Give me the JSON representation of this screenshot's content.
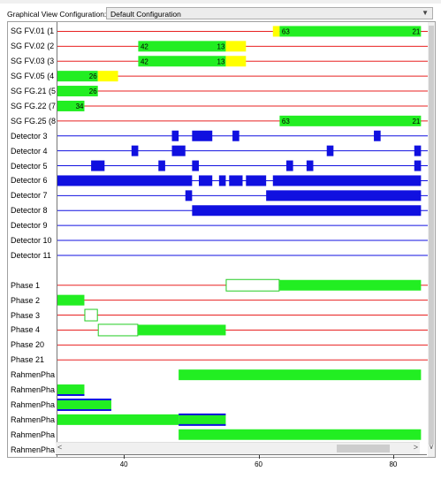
{
  "config": {
    "label": "Graphical View Configuration:",
    "value": "Default Configuration"
  },
  "timeline": {
    "x_min": 30,
    "x_max": 85,
    "ticks": [
      40,
      60,
      80
    ]
  },
  "colors": {
    "green": "#22ee22",
    "yellow": "#ffff00",
    "red": "#e82020",
    "blue": "#1010e0",
    "outline_green": "#22cc22"
  },
  "rows": [
    {
      "label": "SG FV.01 (1",
      "kind": "sg",
      "segments": [
        {
          "x0": 62,
          "x1": 63,
          "color": "yellow"
        },
        {
          "x0": 63,
          "x1": 84,
          "color": "green"
        }
      ],
      "texts": [
        {
          "x": 63.2,
          "text": "63"
        },
        {
          "x": 84,
          "text": "21",
          "align": "end"
        }
      ]
    },
    {
      "label": "SG FV.02 (2",
      "kind": "sg",
      "segments": [
        {
          "x0": 42,
          "x1": 55,
          "color": "green"
        },
        {
          "x0": 55,
          "x1": 58,
          "color": "yellow"
        }
      ],
      "texts": [
        {
          "x": 42.2,
          "text": "42"
        },
        {
          "x": 55,
          "text": "13",
          "align": "end"
        }
      ]
    },
    {
      "label": "SG FV.03 (3",
      "kind": "sg",
      "segments": [
        {
          "x0": 42,
          "x1": 55,
          "color": "green"
        },
        {
          "x0": 55,
          "x1": 58,
          "color": "yellow"
        }
      ],
      "texts": [
        {
          "x": 42.2,
          "text": "42"
        },
        {
          "x": 55,
          "text": "13",
          "align": "end"
        }
      ]
    },
    {
      "label": "SG FV.05 (4",
      "kind": "sg",
      "segments": [
        {
          "x0": 30,
          "x1": 36,
          "color": "green"
        },
        {
          "x0": 36,
          "x1": 39,
          "color": "yellow"
        }
      ],
      "texts": [
        {
          "x": 36,
          "text": "26",
          "align": "end"
        }
      ]
    },
    {
      "label": "SG FG.21 (5",
      "kind": "sg",
      "segments": [
        {
          "x0": 30,
          "x1": 36,
          "color": "green"
        }
      ],
      "texts": [
        {
          "x": 36,
          "text": "26",
          "align": "end"
        }
      ]
    },
    {
      "label": "SG FG.22 (7",
      "kind": "sg",
      "segments": [
        {
          "x0": 30,
          "x1": 34,
          "color": "green"
        }
      ],
      "texts": [
        {
          "x": 34,
          "text": "34",
          "align": "end"
        }
      ]
    },
    {
      "label": "SG FG.25 (8",
      "kind": "sg",
      "segments": [
        {
          "x0": 63,
          "x1": 84,
          "color": "green"
        }
      ],
      "texts": [
        {
          "x": 63.2,
          "text": "63"
        },
        {
          "x": 84,
          "text": "21",
          "align": "end"
        }
      ]
    },
    {
      "label": "Detector 3",
      "kind": "det",
      "segments": [
        {
          "x0": 47,
          "x1": 48
        },
        {
          "x0": 50,
          "x1": 53
        },
        {
          "x0": 56,
          "x1": 57
        },
        {
          "x0": 77,
          "x1": 78
        }
      ]
    },
    {
      "label": "Detector 4",
      "kind": "det",
      "segments": [
        {
          "x0": 41,
          "x1": 42
        },
        {
          "x0": 47,
          "x1": 49
        },
        {
          "x0": 70,
          "x1": 71
        },
        {
          "x0": 83,
          "x1": 84
        }
      ]
    },
    {
      "label": "Detector 5",
      "kind": "det",
      "segments": [
        {
          "x0": 35,
          "x1": 37
        },
        {
          "x0": 45,
          "x1": 46
        },
        {
          "x0": 50,
          "x1": 51
        },
        {
          "x0": 64,
          "x1": 65
        },
        {
          "x0": 67,
          "x1": 68
        },
        {
          "x0": 83,
          "x1": 84
        }
      ]
    },
    {
      "label": "Detector 6",
      "kind": "det",
      "segments": [
        {
          "x0": 30,
          "x1": 50
        },
        {
          "x0": 51,
          "x1": 53
        },
        {
          "x0": 54,
          "x1": 55
        },
        {
          "x0": 55.5,
          "x1": 57.5
        },
        {
          "x0": 58,
          "x1": 61
        },
        {
          "x0": 62,
          "x1": 84
        }
      ]
    },
    {
      "label": "Detector 7",
      "kind": "det",
      "segments": [
        {
          "x0": 49,
          "x1": 50
        },
        {
          "x0": 61,
          "x1": 84
        }
      ]
    },
    {
      "label": "Detector 8",
      "kind": "det",
      "segments": [
        {
          "x0": 50,
          "x1": 84
        }
      ]
    },
    {
      "label": "Detector 9",
      "kind": "det",
      "segments": []
    },
    {
      "label": "Detector 10",
      "kind": "det",
      "segments": []
    },
    {
      "label": "Detector 11",
      "kind": "det",
      "segments": []
    },
    {
      "label": "",
      "kind": "gap",
      "segments": []
    },
    {
      "label": "Phase 1",
      "kind": "phase",
      "segments": [
        {
          "x0": 55,
          "x1": 63,
          "style": "outline"
        },
        {
          "x0": 63,
          "x1": 84,
          "style": "fill"
        }
      ]
    },
    {
      "label": "Phase 2",
      "kind": "phase",
      "segments": [
        {
          "x0": 30,
          "x1": 34,
          "style": "fill"
        }
      ]
    },
    {
      "label": "Phase 3",
      "kind": "phase",
      "segments": [
        {
          "x0": 34,
          "x1": 36,
          "style": "outline"
        }
      ]
    },
    {
      "label": "Phase 4",
      "kind": "phase",
      "segments": [
        {
          "x0": 36,
          "x1": 42,
          "style": "outline"
        },
        {
          "x0": 42,
          "x1": 55,
          "style": "fill"
        }
      ]
    },
    {
      "label": "Phase 20",
      "kind": "phase",
      "segments": []
    },
    {
      "label": "Phase 21",
      "kind": "phase",
      "segments": []
    },
    {
      "label": "RahmenPha",
      "kind": "frame",
      "segments": [
        {
          "x0": 48,
          "x1": 84
        }
      ]
    },
    {
      "label": "RahmenPha",
      "kind": "frame",
      "segments": [
        {
          "x0": 30,
          "x1": 34,
          "blue": "bottom"
        }
      ]
    },
    {
      "label": "RahmenPha",
      "kind": "frame",
      "segments": [
        {
          "x0": 30,
          "x1": 38,
          "blue": "both"
        }
      ]
    },
    {
      "label": "RahmenPha",
      "kind": "frame",
      "segments": [
        {
          "x0": 30,
          "x1": 48
        },
        {
          "x0": 48,
          "x1": 55,
          "blue": "both"
        }
      ]
    },
    {
      "label": "RahmenPha",
      "kind": "frame",
      "segments": [
        {
          "x0": 48,
          "x1": 84
        }
      ]
    },
    {
      "label": "RahmenPha",
      "kind": "frame",
      "segments": []
    }
  ],
  "hscroll": {
    "left_arrow": "<",
    "right_arrow": ">"
  },
  "vscroll": {
    "down_arrow": "∨"
  }
}
